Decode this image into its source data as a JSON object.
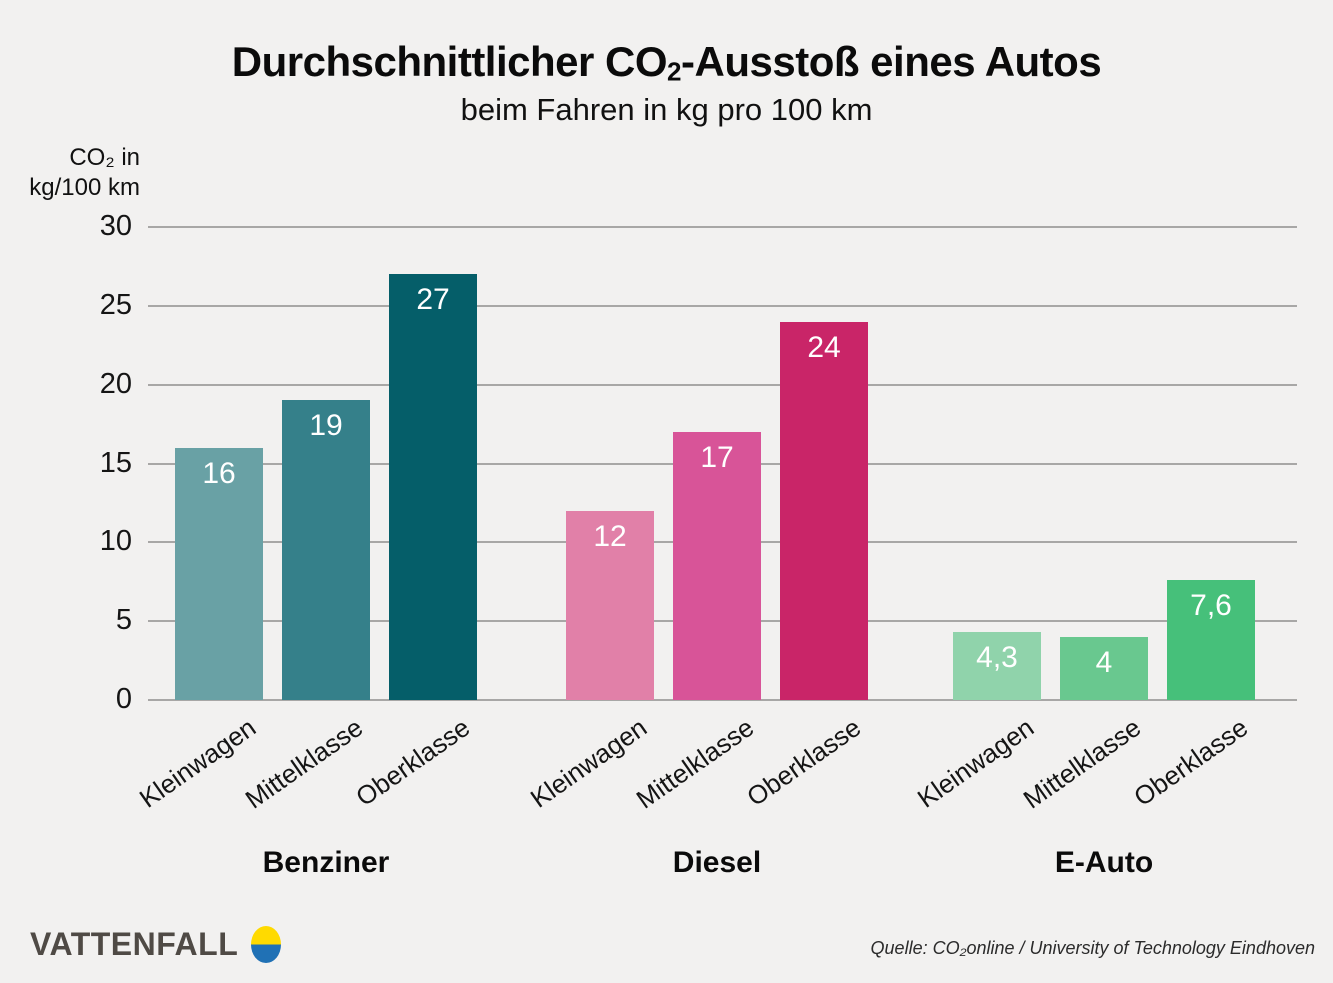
{
  "page": {
    "background": "#F2F1F0"
  },
  "title": {
    "before_sub": "Durchschnittlicher CO",
    "subscript": "2",
    "after_sub": "-Ausstoß eines Autos"
  },
  "subtitle": "beim Fahren in kg pro 100 km",
  "y_axis": {
    "label_line1": "CO₂ in",
    "label_line2": "kg/100 km"
  },
  "footer": {
    "brand": "VATTENFALL",
    "source": "Quelle: CO₂online / University of Technology Eindhoven",
    "logo_colors": {
      "top": "#FFDA00",
      "bottom": "#2071B5"
    }
  },
  "chart_data": {
    "type": "bar",
    "title": "Durchschnittlicher CO₂-Ausstoß eines Autos",
    "subtitle": "beim Fahren in kg pro 100 km",
    "xlabel": "",
    "ylabel": "CO₂ in kg/100 km",
    "ylim": [
      0,
      30
    ],
    "yticks": [
      0,
      5,
      10,
      15,
      20,
      25,
      30
    ],
    "grid": true,
    "legend": "none",
    "categories": [
      "Kleinwagen",
      "Mittelklasse",
      "Oberklasse"
    ],
    "series": [
      {
        "name": "Benziner",
        "values": [
          16,
          19,
          27
        ],
        "labels": [
          "16",
          "19",
          "27"
        ],
        "colors": [
          "#69A1A5",
          "#35808A",
          "#055E69"
        ]
      },
      {
        "name": "Diesel",
        "values": [
          12,
          17,
          24
        ],
        "labels": [
          "12",
          "17",
          "24"
        ],
        "colors": [
          "#E180A8",
          "#D85498",
          "#C92568"
        ]
      },
      {
        "name": "E-Auto",
        "values": [
          4.3,
          4,
          7.6
        ],
        "labels": [
          "4,3",
          "4",
          "7,6"
        ],
        "colors": [
          "#90D3AB",
          "#69C88F",
          "#46C07A"
        ]
      }
    ]
  }
}
